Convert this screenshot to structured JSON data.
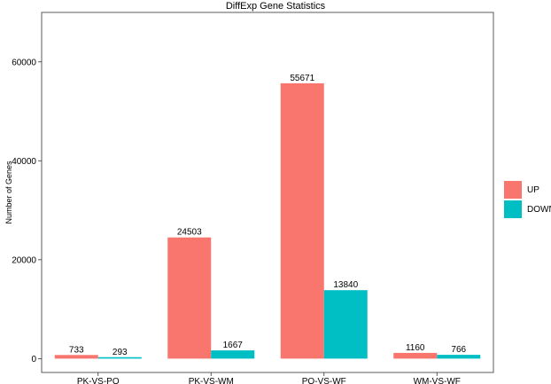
{
  "chart_data": {
    "type": "bar",
    "title": "DiffExp Gene Statistics",
    "xlabel": "",
    "ylabel": "Number of Genes",
    "categories": [
      "PK-VS-PQ",
      "PK-VS-WM",
      "PQ-VS-WF",
      "WM-VS-WF"
    ],
    "series": [
      {
        "name": "UP",
        "values": [
          733,
          24503,
          55671,
          1160
        ],
        "color": "#F8766D"
      },
      {
        "name": "DOWN",
        "values": [
          293,
          1667,
          13840,
          766
        ],
        "color": "#00BFC4"
      }
    ],
    "yticks": [
      0,
      20000,
      40000,
      60000
    ],
    "ylim": [
      -2800,
      70000
    ],
    "grid": false,
    "legend_position": "right",
    "data_labels": true
  }
}
